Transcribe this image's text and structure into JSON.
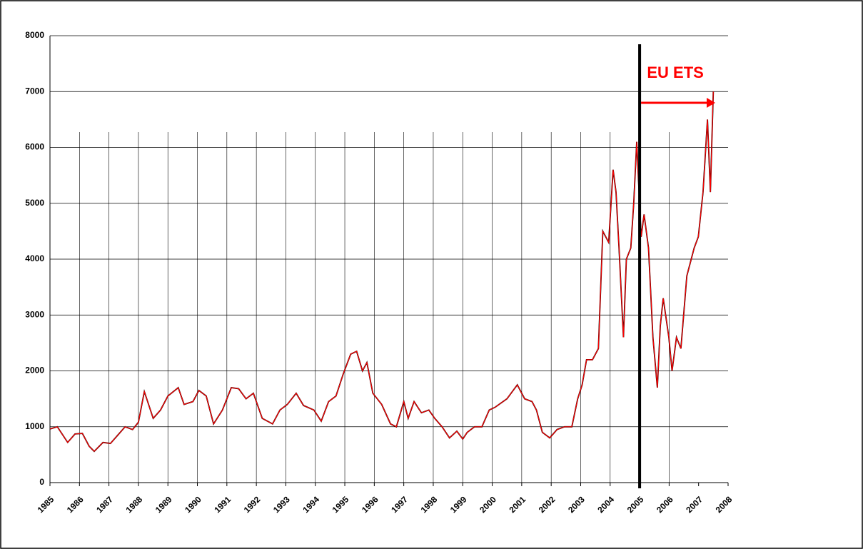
{
  "chart_data": {
    "type": "line",
    "x": [
      1985.0,
      1985.25,
      1985.6,
      1985.85,
      1986.1,
      1986.33,
      1986.5,
      1986.8,
      1987.05,
      1987.3,
      1987.55,
      1987.8,
      1988.0,
      1988.2,
      1988.5,
      1988.75,
      1989.0,
      1989.35,
      1989.55,
      1989.85,
      1990.05,
      1990.3,
      1990.55,
      1990.85,
      1991.15,
      1991.4,
      1991.65,
      1991.9,
      1992.2,
      1992.55,
      1992.8,
      1993.05,
      1993.35,
      1993.6,
      1993.95,
      1994.2,
      1994.45,
      1994.7,
      1994.95,
      1995.2,
      1995.4,
      1995.6,
      1995.75,
      1995.95,
      1996.25,
      1996.55,
      1996.75,
      1997.0,
      1997.15,
      1997.35,
      1997.6,
      1997.85,
      1998.05,
      1998.3,
      1998.55,
      1998.8,
      1999.0,
      1999.15,
      1999.4,
      1999.65,
      1999.9,
      2000.1,
      2000.5,
      2000.85,
      2001.1,
      2001.35,
      2001.5,
      2001.7,
      2001.95,
      2002.2,
      2002.45,
      2002.7,
      2002.9,
      2003.05,
      2003.2,
      2003.4,
      2003.6,
      2003.75,
      2003.95,
      2004.1,
      2004.2,
      2004.3,
      2004.45,
      2004.55,
      2004.7,
      2004.8,
      2004.9,
      2005.05,
      2005.15,
      2005.3,
      2005.45,
      2005.6,
      2005.7,
      2005.8,
      2005.99,
      2006.1,
      2006.25,
      2006.4,
      2006.6,
      2006.85,
      2006.99,
      2007.15,
      2007.3,
      2007.4,
      2007.5
    ],
    "series": [
      {
        "color": "#000000",
        "values": [
          960,
          1000,
          720,
          870,
          880,
          650,
          560,
          720,
          700,
          850,
          1000,
          950,
          1080,
          1630,
          1150,
          1300,
          1550,
          1700,
          1400,
          1450,
          1650,
          1550,
          1050,
          1300,
          1700,
          1680,
          1500,
          1600,
          1150,
          1050,
          1300,
          1400,
          1600,
          1380,
          1300,
          1100,
          1450,
          1550,
          1950,
          2300,
          2350,
          2000,
          2150,
          1600,
          1400,
          1050,
          1000,
          1450,
          1150,
          1450,
          1250,
          1300,
          1150,
          1000,
          800,
          920,
          780,
          900,
          1000,
          1000,
          1300,
          1350,
          1500,
          1750,
          1500,
          1450,
          1300,
          900,
          800,
          950,
          1000,
          1000,
          1500,
          1750,
          2200,
          2200,
          2400,
          4500,
          4300,
          5600,
          5200,
          4200,
          2600,
          4000,
          4200,
          5000,
          6100,
          4400,
          4800,
          4200,
          2600,
          1700,
          2800,
          3300,
          2600,
          2000,
          2600,
          2400,
          3700,
          4200,
          4400,
          5200,
          6500,
          5200,
          7000
        ]
      },
      {
        "color": "#ff0000",
        "values": [
          960,
          1000,
          720,
          870,
          880,
          650,
          560,
          720,
          700,
          850,
          1000,
          950,
          1080,
          1630,
          1150,
          1300,
          1550,
          1700,
          1400,
          1450,
          1650,
          1550,
          1050,
          1300,
          1700,
          1680,
          1500,
          1600,
          1150,
          1050,
          1300,
          1400,
          1600,
          1380,
          1300,
          1100,
          1450,
          1550,
          1950,
          2300,
          2350,
          2000,
          2150,
          1600,
          1400,
          1050,
          1000,
          1450,
          1150,
          1450,
          1250,
          1300,
          1150,
          1000,
          800,
          920,
          780,
          900,
          1000,
          1000,
          1300,
          1350,
          1500,
          1750,
          1500,
          1450,
          1300,
          900,
          800,
          950,
          1000,
          1000,
          1500,
          1750,
          2200,
          2200,
          2400,
          4500,
          4300,
          5600,
          5200,
          4200,
          2600,
          4000,
          4200,
          5000,
          6100,
          4400,
          4800,
          4200,
          2600,
          1700,
          2800,
          3300,
          2600,
          2000,
          2600,
          2400,
          3700,
          4200,
          4400,
          5200,
          6500,
          5200,
          7000
        ]
      }
    ],
    "xlim": [
      1985,
      2008
    ],
    "xticks": [
      1985,
      1986,
      1987,
      1988,
      1989,
      1990,
      1991,
      1992,
      1993,
      1994,
      1995,
      1996,
      1997,
      1998,
      1999,
      2000,
      2001,
      2002,
      2003,
      2004,
      2005,
      2006,
      2007,
      2008
    ],
    "ylim": [
      0,
      8000
    ],
    "yticks": [
      0,
      1000,
      2000,
      3000,
      4000,
      5000,
      6000,
      7000,
      8000
    ],
    "grid": true,
    "annotation": {
      "text": "EU ETS",
      "x": 2005,
      "color": "#ff0000"
    }
  }
}
